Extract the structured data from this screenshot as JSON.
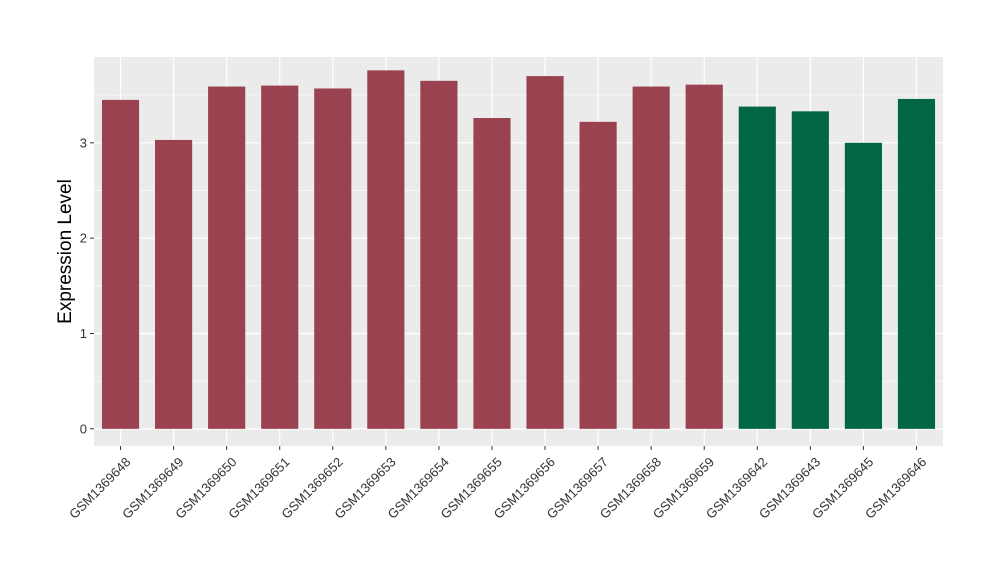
{
  "chart_data": {
    "type": "bar",
    "ylabel": "Expression Level",
    "xlabel": "",
    "ylim": [
      -0.18,
      3.9
    ],
    "yticks": [
      0,
      1,
      2,
      3
    ],
    "grid": true,
    "legend": "none",
    "colors": {
      "panel": "#EBEBEB",
      "grid": "#FFFFFF",
      "group_a": "#9A4250",
      "group_b": "#006644"
    },
    "categories": [
      "GSM1369648",
      "GSM1369649",
      "GSM1369650",
      "GSM1369651",
      "GSM1369652",
      "GSM1369653",
      "GSM1369654",
      "GSM1369655",
      "GSM1369656",
      "GSM1369657",
      "GSM1369658",
      "GSM1369659",
      "GSM1369642",
      "GSM1369643",
      "GSM1369645",
      "GSM1369646"
    ],
    "values": [
      3.45,
      3.03,
      3.59,
      3.6,
      3.57,
      3.76,
      3.65,
      3.26,
      3.7,
      3.22,
      3.59,
      3.61,
      3.38,
      3.33,
      3.0,
      3.46
    ],
    "groups": [
      "a",
      "a",
      "a",
      "a",
      "a",
      "a",
      "a",
      "a",
      "a",
      "a",
      "a",
      "a",
      "b",
      "b",
      "b",
      "b"
    ]
  }
}
